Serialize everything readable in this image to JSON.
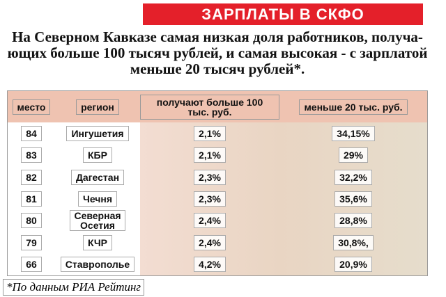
{
  "header": {
    "title": "ЗАРПЛАТЫ В СКФО",
    "lead": [
      "На Северном Кавказе самая низкая доля работников, получа-",
      "ющих больше 100 тысяч рублей, и самая высокая - с зарплатой",
      "меньше 20 тысяч рублей*."
    ]
  },
  "table": {
    "columns": [
      "место",
      "регион",
      "получают больше 100 тыс. руб.",
      "меньше 20 тыс. руб."
    ],
    "rows": [
      [
        "84",
        "Ингушетия",
        "2,1%",
        "34,15%"
      ],
      [
        "83",
        "КБР",
        "2,1%",
        "29%"
      ],
      [
        "82",
        "Дагестан",
        "2,3%",
        "32,2%"
      ],
      [
        "81",
        "Чечня",
        "2,3%",
        "35,6%"
      ],
      [
        "80",
        "Северная Осетия",
        "2,4%",
        "28,8%"
      ],
      [
        "79",
        "КЧР",
        "2,4%",
        "30,8%,"
      ],
      [
        "66",
        "Ставрополье",
        "4,2%",
        "20,9%"
      ]
    ]
  },
  "footnote": "*По данным РИА Рейтинг"
}
